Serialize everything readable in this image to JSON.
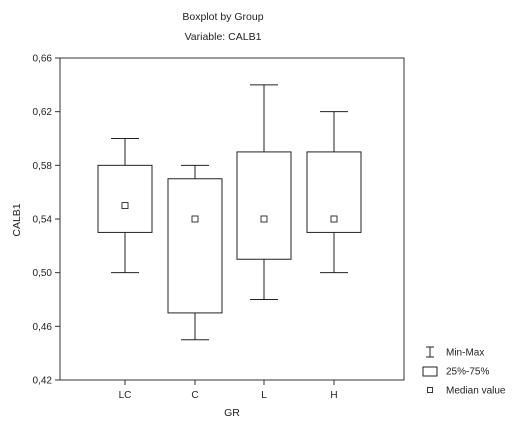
{
  "chart_data": {
    "type": "boxplot",
    "title": "Boxplot by Group",
    "subtitle": "Variable: CALB1",
    "xlabel": "GR",
    "ylabel": "CALB1",
    "ylim": [
      0.42,
      0.66
    ],
    "yticks": [
      0.42,
      0.46,
      0.5,
      0.54,
      0.58,
      0.62,
      0.66
    ],
    "ytick_labels": [
      "0,42",
      "0,46",
      "0,50",
      "0,54",
      "0,58",
      "0,62",
      "0,66"
    ],
    "categories": [
      "LC",
      "C",
      "L",
      "H"
    ],
    "groups": [
      {
        "label": "LC",
        "min": 0.5,
        "q1": 0.53,
        "median": 0.55,
        "q3": 0.58,
        "max": 0.6
      },
      {
        "label": "C",
        "min": 0.45,
        "q1": 0.47,
        "median": 0.54,
        "q3": 0.57,
        "max": 0.58
      },
      {
        "label": "L",
        "min": 0.48,
        "q1": 0.51,
        "median": 0.54,
        "q3": 0.59,
        "max": 0.64
      },
      {
        "label": "H",
        "min": 0.5,
        "q1": 0.53,
        "median": 0.54,
        "q3": 0.59,
        "max": 0.62
      }
    ],
    "grid": false,
    "legend_position": "bottom-right",
    "legend": [
      {
        "symbol": "whisker",
        "label": "Min-Max"
      },
      {
        "symbol": "box",
        "label": "25%-75%"
      },
      {
        "symbol": "square",
        "label": "Median value"
      }
    ]
  }
}
